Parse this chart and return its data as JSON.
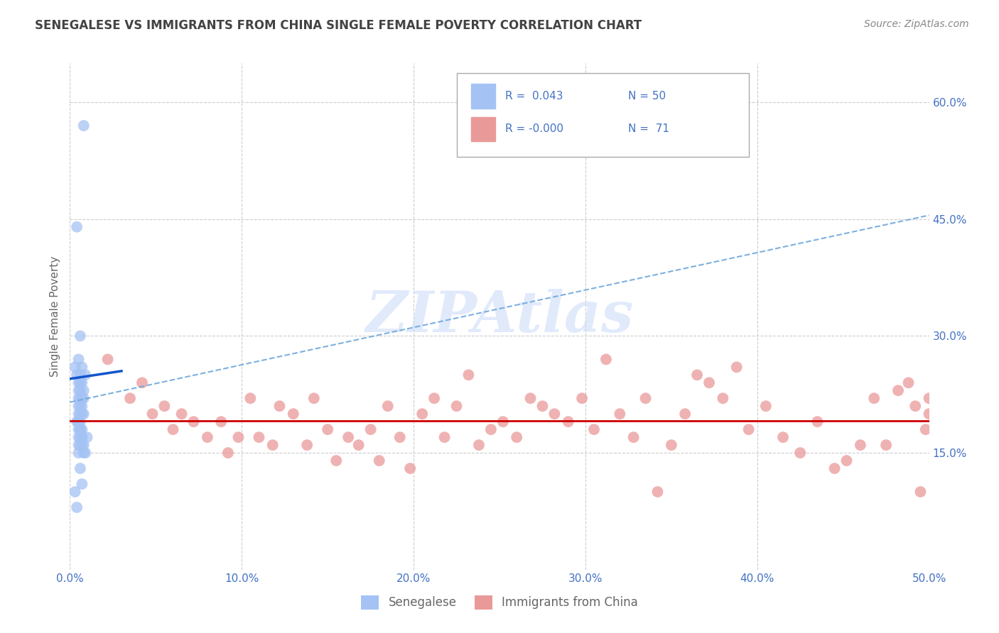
{
  "title": "SENEGALESE VS IMMIGRANTS FROM CHINA SINGLE FEMALE POVERTY CORRELATION CHART",
  "source_text": "Source: ZipAtlas.com",
  "ylabel": "Single Female Poverty",
  "xlim": [
    0.0,
    0.5
  ],
  "ylim": [
    0.0,
    0.65
  ],
  "xtick_labels": [
    "0.0%",
    "10.0%",
    "20.0%",
    "30.0%",
    "40.0%",
    "50.0%"
  ],
  "ytick_positions": [
    0.15,
    0.3,
    0.45,
    0.6
  ],
  "ytick_labels": [
    "15.0%",
    "30.0%",
    "45.0%",
    "60.0%"
  ],
  "legend_label1": "Senegalese",
  "legend_label2": "Immigrants from China",
  "R1": "0.043",
  "N1": "50",
  "R2": "-0.000",
  "N2": "71",
  "blue_color": "#a4c2f4",
  "pink_color": "#ea9999",
  "blue_line_color": "#1155cc",
  "pink_line_color": "#cc0000",
  "dash_color": "#6fa8dc",
  "watermark": "ZIPAtlas",
  "background_color": "#ffffff",
  "title_color": "#434343",
  "axis_label_color": "#666666",
  "tick_color": "#4472c4",
  "senegalese_x": [
    0.008,
    0.004,
    0.006,
    0.005,
    0.003,
    0.007,
    0.006,
    0.004,
    0.009,
    0.005,
    0.006,
    0.007,
    0.008,
    0.005,
    0.006,
    0.007,
    0.008,
    0.005,
    0.006,
    0.005,
    0.006,
    0.007,
    0.005,
    0.006,
    0.007,
    0.008,
    0.005,
    0.004,
    0.006,
    0.005,
    0.006,
    0.007,
    0.005,
    0.006,
    0.007,
    0.005,
    0.006,
    0.007,
    0.01,
    0.008,
    0.005,
    0.006,
    0.007,
    0.008,
    0.005,
    0.009,
    0.006,
    0.007,
    0.003,
    0.004
  ],
  "senegalese_y": [
    0.57,
    0.44,
    0.3,
    0.27,
    0.26,
    0.26,
    0.25,
    0.25,
    0.25,
    0.24,
    0.24,
    0.24,
    0.23,
    0.23,
    0.23,
    0.22,
    0.22,
    0.22,
    0.22,
    0.21,
    0.21,
    0.21,
    0.2,
    0.2,
    0.2,
    0.2,
    0.19,
    0.19,
    0.19,
    0.19,
    0.18,
    0.18,
    0.18,
    0.18,
    0.17,
    0.17,
    0.17,
    0.17,
    0.17,
    0.16,
    0.16,
    0.16,
    0.16,
    0.15,
    0.15,
    0.15,
    0.13,
    0.11,
    0.1,
    0.08
  ],
  "china_x": [
    0.022,
    0.035,
    0.042,
    0.048,
    0.055,
    0.06,
    0.065,
    0.072,
    0.08,
    0.088,
    0.092,
    0.098,
    0.105,
    0.11,
    0.118,
    0.122,
    0.13,
    0.138,
    0.142,
    0.15,
    0.155,
    0.162,
    0.168,
    0.175,
    0.18,
    0.185,
    0.192,
    0.198,
    0.205,
    0.212,
    0.218,
    0.225,
    0.232,
    0.238,
    0.245,
    0.252,
    0.26,
    0.268,
    0.275,
    0.282,
    0.29,
    0.298,
    0.305,
    0.312,
    0.32,
    0.328,
    0.335,
    0.342,
    0.35,
    0.358,
    0.365,
    0.372,
    0.38,
    0.388,
    0.395,
    0.405,
    0.415,
    0.425,
    0.435,
    0.445,
    0.452,
    0.46,
    0.468,
    0.475,
    0.482,
    0.488,
    0.492,
    0.495,
    0.498,
    0.5,
    0.5
  ],
  "china_y": [
    0.27,
    0.22,
    0.24,
    0.2,
    0.21,
    0.18,
    0.2,
    0.19,
    0.17,
    0.19,
    0.15,
    0.17,
    0.22,
    0.17,
    0.16,
    0.21,
    0.2,
    0.16,
    0.22,
    0.18,
    0.14,
    0.17,
    0.16,
    0.18,
    0.14,
    0.21,
    0.17,
    0.13,
    0.2,
    0.22,
    0.17,
    0.21,
    0.25,
    0.16,
    0.18,
    0.19,
    0.17,
    0.22,
    0.21,
    0.2,
    0.19,
    0.22,
    0.18,
    0.27,
    0.2,
    0.17,
    0.22,
    0.1,
    0.16,
    0.2,
    0.25,
    0.24,
    0.22,
    0.26,
    0.18,
    0.21,
    0.17,
    0.15,
    0.19,
    0.13,
    0.14,
    0.16,
    0.22,
    0.16,
    0.23,
    0.24,
    0.21,
    0.1,
    0.18,
    0.2,
    0.22
  ]
}
